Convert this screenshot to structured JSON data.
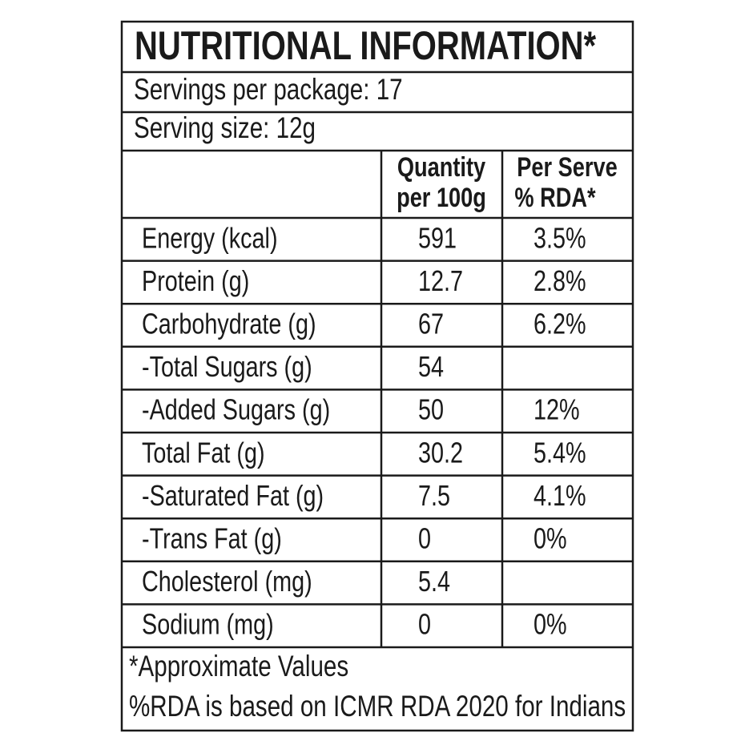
{
  "title": "NUTRITIONAL INFORMATION*",
  "servings_per_package": "Servings per package: 17",
  "serving_size": "Serving size: 12g",
  "table": {
    "header": {
      "quantity": [
        "Quantity",
        "per 100g"
      ],
      "rda": [
        "Per Serve",
        "% RDA*"
      ]
    },
    "rows": [
      {
        "nutrient": "Energy (kcal)",
        "quantity": "591",
        "rda": "3.5%"
      },
      {
        "nutrient": "Protein (g)",
        "quantity": "12.7",
        "rda": "2.8%"
      },
      {
        "nutrient": "Carbohydrate (g)",
        "quantity": "67",
        "rda": "6.2%"
      },
      {
        "nutrient": "-Total Sugars (g)",
        "quantity": "54"
      },
      {
        "nutrient": "-Added Sugars (g)",
        "quantity": "50",
        "rda": "12%"
      },
      {
        "nutrient": "Total Fat (g)",
        "quantity": "30.2",
        "rda": "5.4%"
      },
      {
        "nutrient": "-Saturated Fat (g)",
        "quantity": "7.5",
        "rda": "4.1%"
      },
      {
        "nutrient": "-Trans Fat (g)",
        "quantity": "0",
        "rda": "0%"
      },
      {
        "nutrient": "Cholesterol (mg)",
        "quantity": "5.4"
      },
      {
        "nutrient": "Sodium (mg)",
        "quantity": "0",
        "rda": "0%"
      }
    ]
  },
  "footnotes": [
    "*Approximate Values",
    "%RDA is based on ICMR RDA 2020 for Indians"
  ]
}
